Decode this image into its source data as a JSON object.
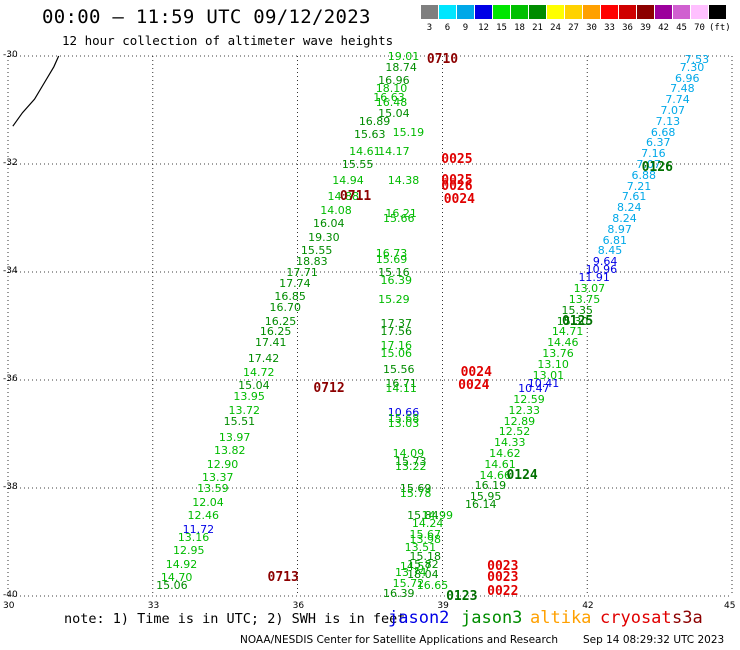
{
  "header": {
    "title": "00:00 – 11:59 UTC 09/12/2023",
    "subtitle": "12 hour collection of altimeter wave heights"
  },
  "scale": {
    "colors": [
      "#7f7f7f",
      "#00e6ff",
      "#00a8e8",
      "#0000e6",
      "#00e600",
      "#00c000",
      "#008c00",
      "#ffff00",
      "#ffd200",
      "#ffa000",
      "#ff0000",
      "#d00000",
      "#8c0000",
      "#9c009c",
      "#d060d0",
      "#ffc0ff",
      "#000000"
    ],
    "labels": [
      "3",
      "6",
      "9",
      "12",
      "15",
      "18",
      "21",
      "24",
      "27",
      "30",
      "33",
      "36",
      "39",
      "42",
      "45",
      "70",
      "(ft)"
    ]
  },
  "map": {
    "lon_min": 30,
    "lon_max": 45,
    "lat_min": -40,
    "lat_max": -30,
    "lat_ticks": [
      "-30",
      "-32",
      "-34",
      "-36",
      "-38",
      "-40"
    ],
    "lon_ticks": [
      "30",
      "33",
      "36",
      "39",
      "42",
      "45"
    ]
  },
  "passes": [
    {
      "label": "0710",
      "color": "#8c0000",
      "lon": 39.05,
      "lat": -30.05
    },
    {
      "label": "0025",
      "color": "#e00000",
      "lon": 39.35,
      "lat": -31.9
    },
    {
      "label": "0025",
      "color": "#e00000",
      "lon": 39.35,
      "lat": -32.3
    },
    {
      "label": "0026",
      "color": "#e00000",
      "lon": 39.35,
      "lat": -32.4
    },
    {
      "label": "0711",
      "color": "#8c0000",
      "lon": 37.25,
      "lat": -32.6
    },
    {
      "label": "0024",
      "color": "#e00000",
      "lon": 39.4,
      "lat": -32.65
    },
    {
      "label": "0126",
      "color": "#007000",
      "lon": 43.5,
      "lat": -32.05
    },
    {
      "label": "0125",
      "color": "#007000",
      "lon": 41.85,
      "lat": -34.9
    },
    {
      "label": "0024",
      "color": "#e00000",
      "lon": 39.75,
      "lat": -35.85
    },
    {
      "label": "0024",
      "color": "#e00000",
      "lon": 39.7,
      "lat": -36.1
    },
    {
      "label": "0712",
      "color": "#8c0000",
      "lon": 36.7,
      "lat": -36.15
    },
    {
      "label": "0124",
      "color": "#007000",
      "lon": 40.7,
      "lat": -37.75
    },
    {
      "label": "0023",
      "color": "#e00000",
      "lon": 40.3,
      "lat": -39.45
    },
    {
      "label": "0023",
      "color": "#e00000",
      "lon": 40.3,
      "lat": -39.65
    },
    {
      "label": "0022",
      "color": "#e00000",
      "lon": 40.3,
      "lat": -39.9
    },
    {
      "label": "0713",
      "color": "#8c0000",
      "lon": 35.75,
      "lat": -39.65
    },
    {
      "label": "0123",
      "color": "#007000",
      "lon": 39.45,
      "lat": -40.0
    }
  ],
  "observations": [
    {
      "v": "19.01",
      "c": "#00bb00",
      "lon": 38.2,
      "lat": -30.0
    },
    {
      "v": "18.74",
      "c": "#008c00",
      "lon": 38.15,
      "lat": -30.2
    },
    {
      "v": "16.96",
      "c": "#008c00",
      "lon": 38.0,
      "lat": -30.45
    },
    {
      "v": "18.10",
      "c": "#00bb00",
      "lon": 37.95,
      "lat": -30.6
    },
    {
      "v": "16.63",
      "c": "#00bb00",
      "lon": 37.9,
      "lat": -30.75
    },
    {
      "v": "16.48",
      "c": "#00bb00",
      "lon": 37.95,
      "lat": -30.85
    },
    {
      "v": "15.04",
      "c": "#008c00",
      "lon": 38.0,
      "lat": -31.05
    },
    {
      "v": "16.89",
      "c": "#008c00",
      "lon": 37.6,
      "lat": -31.2
    },
    {
      "v": "15.19",
      "c": "#00bb00",
      "lon": 38.3,
      "lat": -31.4
    },
    {
      "v": "15.63",
      "c": "#008c00",
      "lon": 37.5,
      "lat": -31.45
    },
    {
      "v": "14.61",
      "c": "#00bb00",
      "lon": 37.4,
      "lat": -31.75
    },
    {
      "v": "14.17",
      "c": "#00bb00",
      "lon": 38.0,
      "lat": -31.75
    },
    {
      "v": "15.55",
      "c": "#008c00",
      "lon": 37.25,
      "lat": -32.0
    },
    {
      "v": "14.94",
      "c": "#00bb00",
      "lon": 37.05,
      "lat": -32.3
    },
    {
      "v": "14.38",
      "c": "#00bb00",
      "lon": 38.2,
      "lat": -32.3
    },
    {
      "v": "14.88",
      "c": "#00bb00",
      "lon": 36.95,
      "lat": -32.6
    },
    {
      "v": "14.08",
      "c": "#00bb00",
      "lon": 36.8,
      "lat": -32.85
    },
    {
      "v": "16.21",
      "c": "#00bb00",
      "lon": 38.15,
      "lat": -32.9
    },
    {
      "v": "15.66",
      "c": "#00bb00",
      "lon": 38.1,
      "lat": -33.0
    },
    {
      "v": "16.04",
      "c": "#008c00",
      "lon": 36.65,
      "lat": -33.1
    },
    {
      "v": "19.30",
      "c": "#008c00",
      "lon": 36.55,
      "lat": -33.35
    },
    {
      "v": "15.55",
      "c": "#008c00",
      "lon": 36.4,
      "lat": -33.6
    },
    {
      "v": "16.73",
      "c": "#00bb00",
      "lon": 37.95,
      "lat": -33.65
    },
    {
      "v": "15.69",
      "c": "#00bb00",
      "lon": 37.95,
      "lat": -33.75
    },
    {
      "v": "18.83",
      "c": "#008c00",
      "lon": 36.3,
      "lat": -33.8
    },
    {
      "v": "17.71",
      "c": "#008c00",
      "lon": 36.1,
      "lat": -34.0
    },
    {
      "v": "15.16",
      "c": "#008c00",
      "lon": 38.0,
      "lat": -34.0
    },
    {
      "v": "16.39",
      "c": "#00bb00",
      "lon": 38.05,
      "lat": -34.15
    },
    {
      "v": "17.74",
      "c": "#008c00",
      "lon": 35.95,
      "lat": -34.2
    },
    {
      "v": "16.85",
      "c": "#008c00",
      "lon": 35.85,
      "lat": -34.45
    },
    {
      "v": "15.29",
      "c": "#00bb00",
      "lon": 38.0,
      "lat": -34.5
    },
    {
      "v": "16.70",
      "c": "#008c00",
      "lon": 35.75,
      "lat": -34.65
    },
    {
      "v": "16.25",
      "c": "#008c00",
      "lon": 35.65,
      "lat": -34.9
    },
    {
      "v": "17.37",
      "c": "#008c00",
      "lon": 38.05,
      "lat": -34.95
    },
    {
      "v": "16.25",
      "c": "#008c00",
      "lon": 35.55,
      "lat": -35.1
    },
    {
      "v": "17.56",
      "c": "#008c00",
      "lon": 38.05,
      "lat": -35.1
    },
    {
      "v": "17.41",
      "c": "#008c00",
      "lon": 35.45,
      "lat": -35.3
    },
    {
      "v": "17.16",
      "c": "#00bb00",
      "lon": 38.05,
      "lat": -35.35
    },
    {
      "v": "15.06",
      "c": "#00bb00",
      "lon": 38.05,
      "lat": -35.5
    },
    {
      "v": "17.42",
      "c": "#008c00",
      "lon": 35.3,
      "lat": -35.6
    },
    {
      "v": "15.56",
      "c": "#008c00",
      "lon": 38.1,
      "lat": -35.8
    },
    {
      "v": "14.72",
      "c": "#00bb00",
      "lon": 35.2,
      "lat": -35.85
    },
    {
      "v": "15.04",
      "c": "#008c00",
      "lon": 35.1,
      "lat": -36.1
    },
    {
      "v": "16.71",
      "c": "#008c00",
      "lon": 38.15,
      "lat": -36.05
    },
    {
      "v": "14.11",
      "c": "#00bb00",
      "lon": 38.15,
      "lat": -36.15
    },
    {
      "v": "13.95",
      "c": "#00bb00",
      "lon": 35.0,
      "lat": -36.3
    },
    {
      "v": "13.72",
      "c": "#00bb00",
      "lon": 34.9,
      "lat": -36.55
    },
    {
      "v": "10.66",
      "c": "#0000e6",
      "lon": 38.2,
      "lat": -36.6
    },
    {
      "v": "15.68",
      "c": "#00bb00",
      "lon": 38.2,
      "lat": -36.7
    },
    {
      "v": "13.03",
      "c": "#00bb00",
      "lon": 38.2,
      "lat": -36.8
    },
    {
      "v": "15.51",
      "c": "#008c00",
      "lon": 34.8,
      "lat": -36.75
    },
    {
      "v": "13.97",
      "c": "#00bb00",
      "lon": 34.7,
      "lat": -37.05
    },
    {
      "v": "13.82",
      "c": "#00bb00",
      "lon": 34.6,
      "lat": -37.3
    },
    {
      "v": "14.09",
      "c": "#00bb00",
      "lon": 38.3,
      "lat": -37.35
    },
    {
      "v": "15.73",
      "c": "#008c00",
      "lon": 38.35,
      "lat": -37.5
    },
    {
      "v": "13.22",
      "c": "#00bb00",
      "lon": 38.35,
      "lat": -37.6
    },
    {
      "v": "12.90",
      "c": "#00bb00",
      "lon": 34.45,
      "lat": -37.55
    },
    {
      "v": "13.37",
      "c": "#00bb00",
      "lon": 34.35,
      "lat": -37.8
    },
    {
      "v": "13.59",
      "c": "#00bb00",
      "lon": 34.25,
      "lat": -38.0
    },
    {
      "v": "15.69",
      "c": "#008c00",
      "lon": 38.45,
      "lat": -38.0
    },
    {
      "v": "15.78",
      "c": "#00bb00",
      "lon": 38.45,
      "lat": -38.1
    },
    {
      "v": "12.04",
      "c": "#00bb00",
      "lon": 34.15,
      "lat": -38.25
    },
    {
      "v": "12.46",
      "c": "#00bb00",
      "lon": 34.05,
      "lat": -38.5
    },
    {
      "v": "15.84",
      "c": "#008c00",
      "lon": 38.6,
      "lat": -38.5
    },
    {
      "v": "14.99",
      "c": "#00bb00",
      "lon": 38.9,
      "lat": -38.5
    },
    {
      "v": "14.24",
      "c": "#00bb00",
      "lon": 38.7,
      "lat": -38.65
    },
    {
      "v": "11.72",
      "c": "#0000e6",
      "lon": 33.95,
      "lat": -38.75
    },
    {
      "v": "15.67",
      "c": "#00bb00",
      "lon": 38.65,
      "lat": -38.85
    },
    {
      "v": "13.98",
      "c": "#00bb00",
      "lon": 38.65,
      "lat": -38.95
    },
    {
      "v": "13.16",
      "c": "#00bb00",
      "lon": 33.85,
      "lat": -38.9
    },
    {
      "v": "12.95",
      "c": "#00bb00",
      "lon": 33.75,
      "lat": -39.15
    },
    {
      "v": "13.51",
      "c": "#00bb00",
      "lon": 38.55,
      "lat": -39.1
    },
    {
      "v": "15.18",
      "c": "#008c00",
      "lon": 38.65,
      "lat": -39.25
    },
    {
      "v": "14.92",
      "c": "#00bb00",
      "lon": 33.6,
      "lat": -39.4
    },
    {
      "v": "14.57",
      "c": "#00bb00",
      "lon": 38.45,
      "lat": -39.45
    },
    {
      "v": "15.82",
      "c": "#008c00",
      "lon": 38.6,
      "lat": -39.4
    },
    {
      "v": "13.74",
      "c": "#00bb00",
      "lon": 38.35,
      "lat": -39.55
    },
    {
      "v": "18.04",
      "c": "#008c00",
      "lon": 38.6,
      "lat": -39.6
    },
    {
      "v": "14.70",
      "c": "#00bb00",
      "lon": 33.5,
      "lat": -39.65
    },
    {
      "v": "15.06",
      "c": "#008c00",
      "lon": 33.4,
      "lat": -39.8
    },
    {
      "v": "15.72",
      "c": "#00bb00",
      "lon": 38.3,
      "lat": -39.75
    },
    {
      "v": "16.65",
      "c": "#00bb00",
      "lon": 38.8,
      "lat": -39.8
    },
    {
      "v": "16.39",
      "c": "#008c00",
      "lon": 38.1,
      "lat": -39.95
    },
    {
      "v": "7.53",
      "c": "#00a8e8",
      "lon": 44.35,
      "lat": -30.05
    },
    {
      "v": "7.30",
      "c": "#00a8e8",
      "lon": 44.25,
      "lat": -30.2
    },
    {
      "v": "6.96",
      "c": "#00a8e8",
      "lon": 44.15,
      "lat": -30.4
    },
    {
      "v": "7.48",
      "c": "#00a8e8",
      "lon": 44.05,
      "lat": -30.6
    },
    {
      "v": "7.74",
      "c": "#00a8e8",
      "lon": 43.95,
      "lat": -30.8
    },
    {
      "v": "7.07",
      "c": "#00a8e8",
      "lon": 43.85,
      "lat": -31.0
    },
    {
      "v": "7.13",
      "c": "#00a8e8",
      "lon": 43.75,
      "lat": -31.2
    },
    {
      "v": "6.68",
      "c": "#00a8e8",
      "lon": 43.65,
      "lat": -31.4
    },
    {
      "v": "6.37",
      "c": "#00a8e8",
      "lon": 43.55,
      "lat": -31.6
    },
    {
      "v": "7.16",
      "c": "#00a8e8",
      "lon": 43.45,
      "lat": -31.8
    },
    {
      "v": "7.07",
      "c": "#00a8e8",
      "lon": 43.35,
      "lat": -32.0
    },
    {
      "v": "6.88",
      "c": "#00a8e8",
      "lon": 43.25,
      "lat": -32.2
    },
    {
      "v": "7.21",
      "c": "#00a8e8",
      "lon": 43.15,
      "lat": -32.4
    },
    {
      "v": "7.61",
      "c": "#00a8e8",
      "lon": 43.05,
      "lat": -32.6
    },
    {
      "v": "8.24",
      "c": "#00a8e8",
      "lon": 42.95,
      "lat": -32.8
    },
    {
      "v": "8.24",
      "c": "#00a8e8",
      "lon": 42.85,
      "lat": -33.0
    },
    {
      "v": "8.97",
      "c": "#00a8e8",
      "lon": 42.75,
      "lat": -33.2
    },
    {
      "v": "6.81",
      "c": "#00a8e8",
      "lon": 42.65,
      "lat": -33.4
    },
    {
      "v": "8.45",
      "c": "#00a8e8",
      "lon": 42.55,
      "lat": -33.6
    },
    {
      "v": "9.64",
      "c": "#0000e6",
      "lon": 42.45,
      "lat": -33.8
    },
    {
      "v": "10.96",
      "c": "#0000e6",
      "lon": 42.3,
      "lat": -33.95
    },
    {
      "v": "11.91",
      "c": "#0000e6",
      "lon": 42.15,
      "lat": -34.1
    },
    {
      "v": "13.07",
      "c": "#00bb00",
      "lon": 42.05,
      "lat": -34.3
    },
    {
      "v": "13.75",
      "c": "#00bb00",
      "lon": 41.95,
      "lat": -34.5
    },
    {
      "v": "15.35",
      "c": "#008c00",
      "lon": 41.8,
      "lat": -34.7
    },
    {
      "v": "15.30",
      "c": "#008c00",
      "lon": 41.7,
      "lat": -34.9
    },
    {
      "v": "14.71",
      "c": "#00bb00",
      "lon": 41.6,
      "lat": -35.1
    },
    {
      "v": "14.46",
      "c": "#00bb00",
      "lon": 41.5,
      "lat": -35.3
    },
    {
      "v": "13.76",
      "c": "#00bb00",
      "lon": 41.4,
      "lat": -35.5
    },
    {
      "v": "13.10",
      "c": "#00bb00",
      "lon": 41.3,
      "lat": -35.7
    },
    {
      "v": "13.01",
      "c": "#00bb00",
      "lon": 41.2,
      "lat": -35.9
    },
    {
      "v": "10.41",
      "c": "#0000e6",
      "lon": 41.1,
      "lat": -36.05
    },
    {
      "v": "10.47",
      "c": "#0000e6",
      "lon": 40.9,
      "lat": -36.15
    },
    {
      "v": "12.59",
      "c": "#00bb00",
      "lon": 40.8,
      "lat": -36.35
    },
    {
      "v": "12.33",
      "c": "#00bb00",
      "lon": 40.7,
      "lat": -36.55
    },
    {
      "v": "12.89",
      "c": "#00bb00",
      "lon": 40.6,
      "lat": -36.75
    },
    {
      "v": "12.52",
      "c": "#00bb00",
      "lon": 40.5,
      "lat": -36.95
    },
    {
      "v": "14.33",
      "c": "#00bb00",
      "lon": 40.4,
      "lat": -37.15
    },
    {
      "v": "14.62",
      "c": "#00bb00",
      "lon": 40.3,
      "lat": -37.35
    },
    {
      "v": "14.61",
      "c": "#00bb00",
      "lon": 40.2,
      "lat": -37.55
    },
    {
      "v": "14.66",
      "c": "#00bb00",
      "lon": 40.1,
      "lat": -37.75
    },
    {
      "v": "16.19",
      "c": "#008c00",
      "lon": 40.0,
      "lat": -37.95
    },
    {
      "v": "15.95",
      "c": "#008c00",
      "lon": 39.9,
      "lat": -38.15
    },
    {
      "v": "16.14",
      "c": "#008c00",
      "lon": 39.8,
      "lat": -38.3
    }
  ],
  "coastline_points": [
    [
      30.1,
      -31.3
    ],
    [
      30.3,
      -31.05
    ],
    [
      30.55,
      -30.8
    ],
    [
      30.75,
      -30.5
    ],
    [
      30.95,
      -30.2
    ],
    [
      31.05,
      -30.0
    ]
  ],
  "note": "note: 1) Time is in UTC; 2) SWH is in feet",
  "legend": [
    {
      "name": "jason2",
      "color": "#0000e6"
    },
    {
      "name": "jason3",
      "color": "#008c00"
    },
    {
      "name": "altika",
      "color": "#ffa000"
    },
    {
      "name": "cryosat",
      "color": "#e00000"
    },
    {
      "name": "s3a",
      "color": "#8c0000"
    }
  ],
  "footer": {
    "credit": "NOAA/NESDIS Center for Satellite Applications and Research",
    "timestamp": "Sep 14 08:29:32 UTC 2023"
  }
}
